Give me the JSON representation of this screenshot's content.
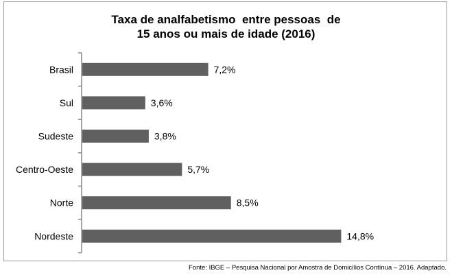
{
  "chart_data": {
    "type": "bar",
    "orientation": "horizontal",
    "title": "Taxa de analfabetismo  entre pessoas  de\n15 anos ou mais de idade (2016)",
    "categories": [
      "Brasil",
      "Sul",
      "Sudeste",
      "Centro-Oeste",
      "Norte",
      "Nordeste"
    ],
    "values": [
      7.2,
      3.6,
      3.8,
      5.7,
      8.5,
      14.8
    ],
    "data_labels": [
      "7,2%",
      "3,6%",
      "3,8%",
      "5,7%",
      "8,5%",
      "14,8%"
    ],
    "xlabel": "",
    "ylabel": "",
    "xlim": [
      0,
      20
    ],
    "grid": false,
    "bar_color": "#606060",
    "source": "Fonte: IBGE – Pesquisa Nacional por Amostra de Domicílios Contínua – 2016. Adaptado."
  }
}
